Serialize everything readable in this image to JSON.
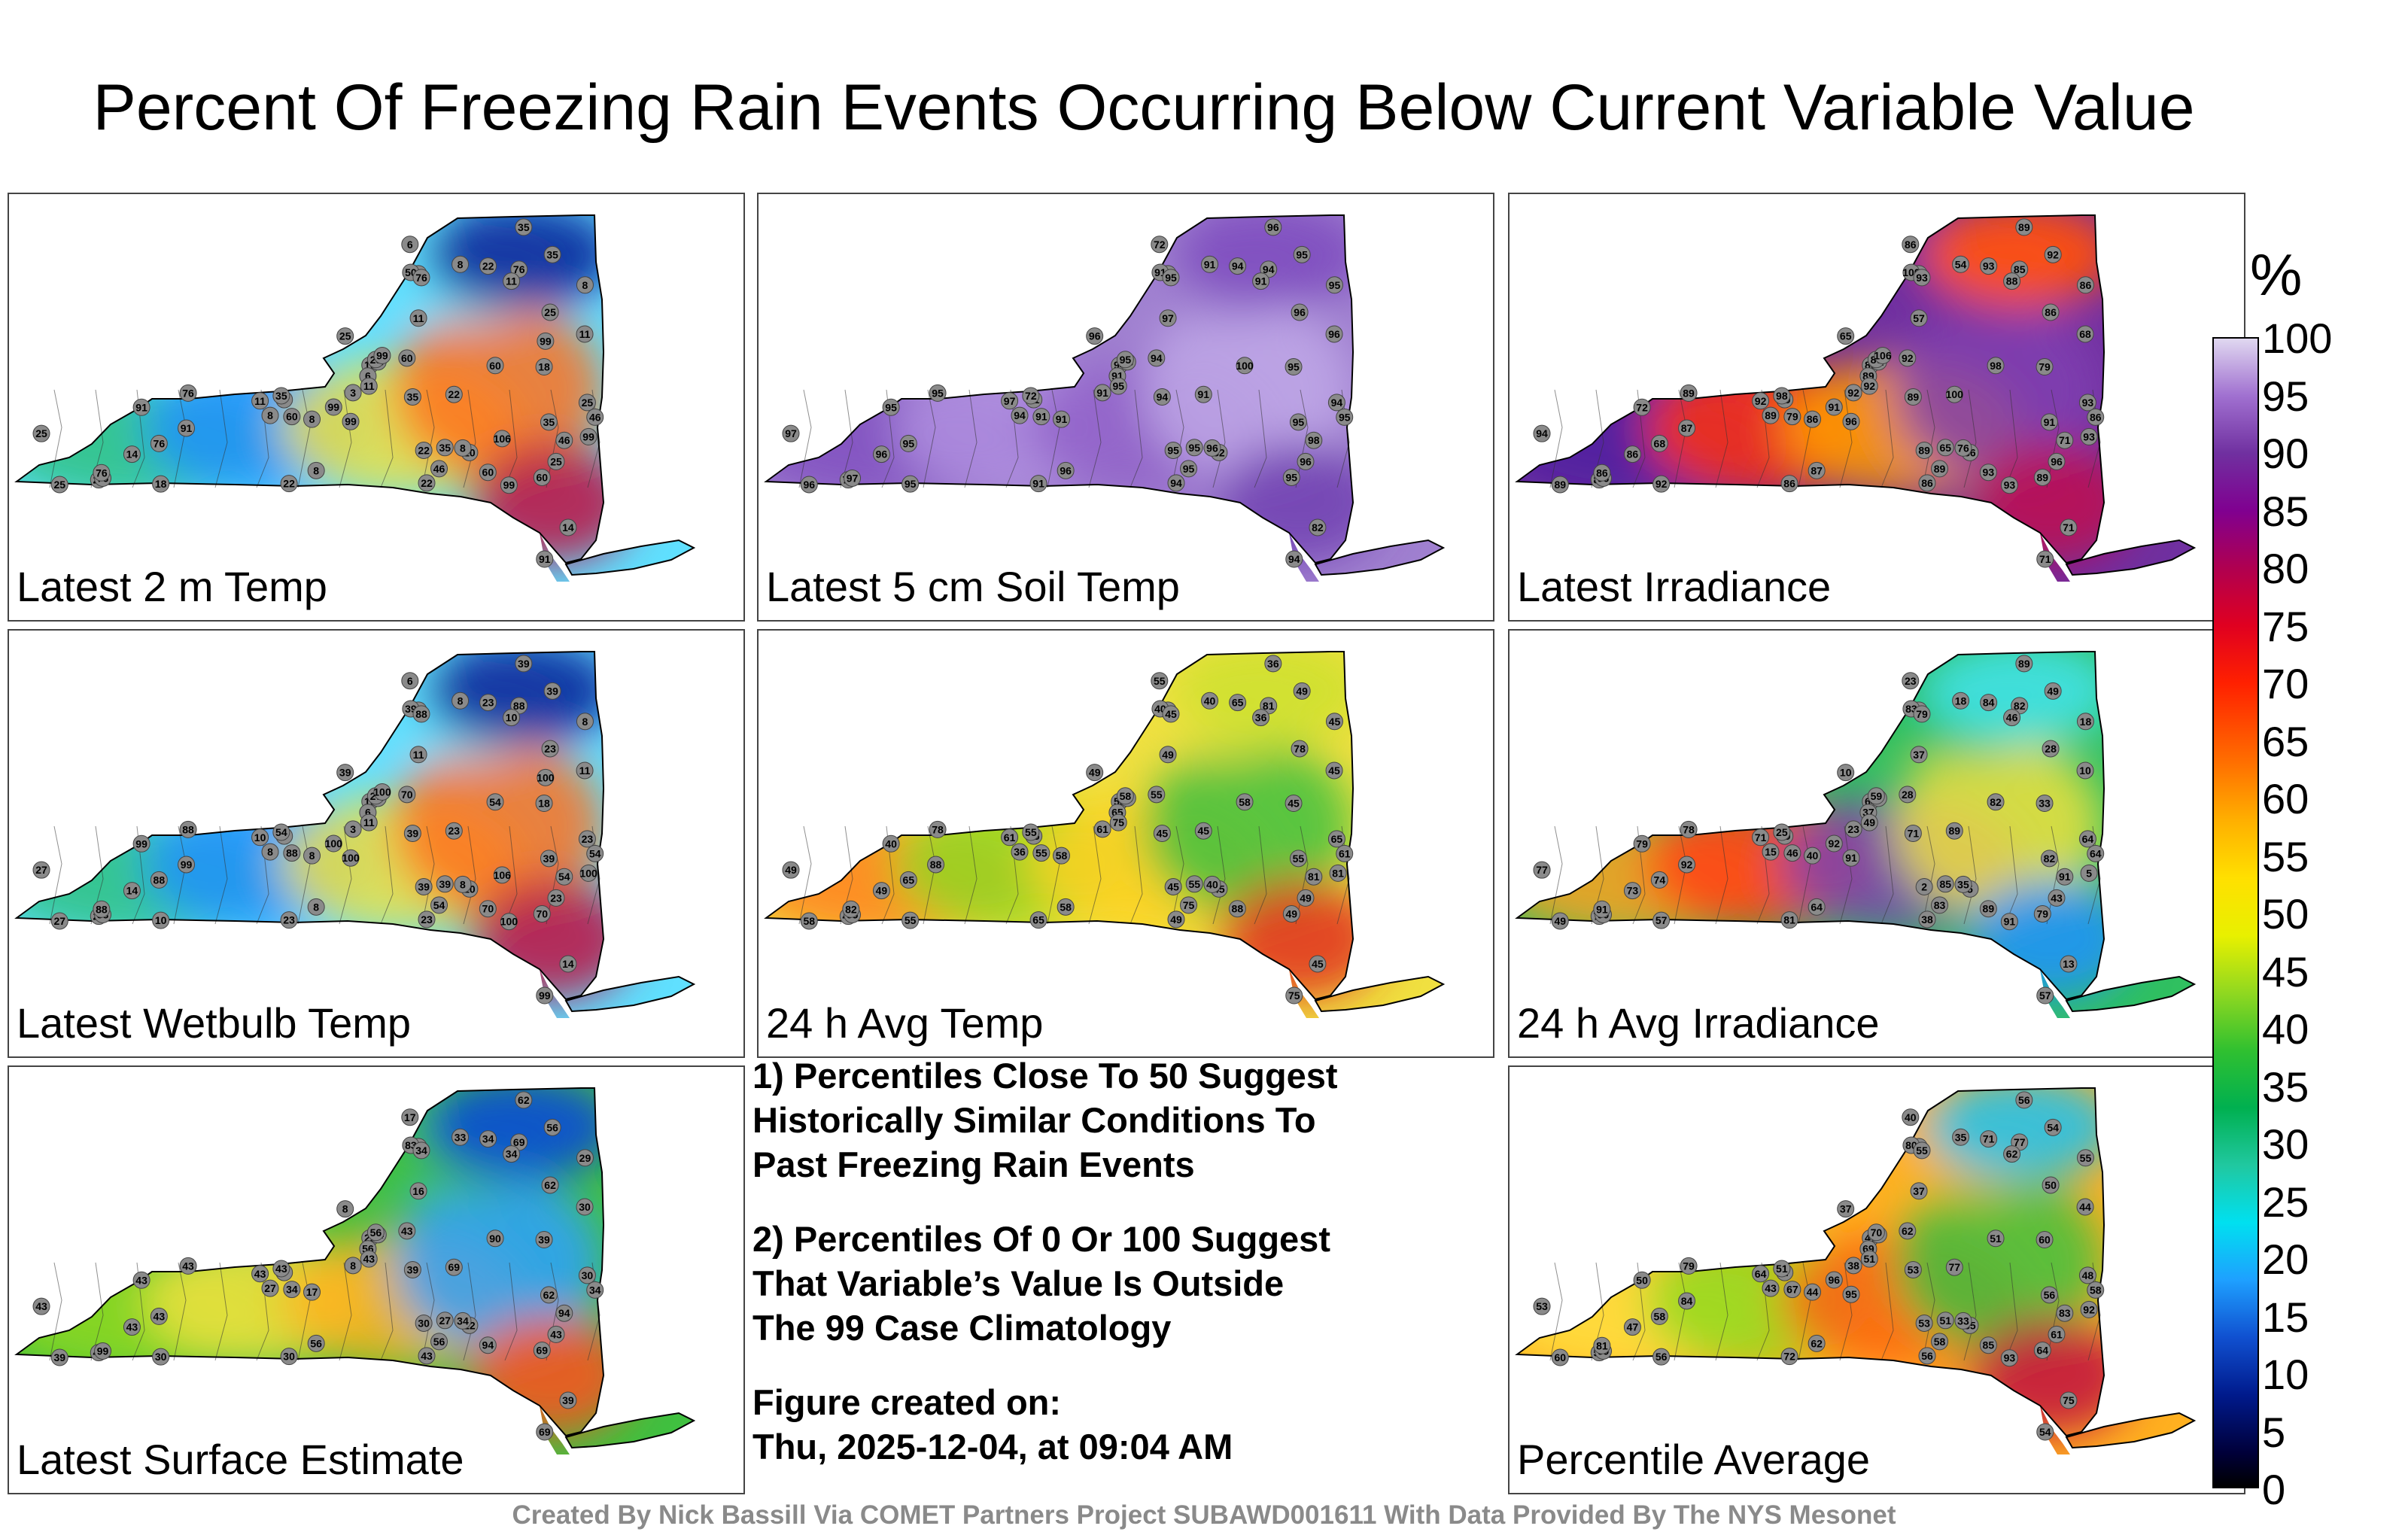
{
  "title": "Percent Of Freezing Rain Events Occurring Below Current Variable Value",
  "panels": [
    {
      "label": "Latest 2 m Temp",
      "palette": [
        "#60e0ff",
        "#30c080",
        "#2090ff",
        "#f0e040",
        "#ff7020",
        "#c01040"
      ],
      "northeast": "#1030a0",
      "stations": [
        "8",
        "3",
        "10",
        "6",
        "3",
        "3",
        "8",
        "8",
        "11",
        "25",
        "25",
        "10",
        "22",
        "11",
        "35",
        "8",
        "14",
        "8",
        "22",
        "6",
        "11",
        "25",
        "46",
        "76",
        "76",
        "22",
        "22",
        "35",
        "25",
        "35",
        "25",
        "18",
        "8",
        "46",
        "60",
        "60",
        "50",
        "76",
        "91",
        "25",
        "14",
        "18",
        "25",
        "11",
        "35",
        "11",
        "25",
        "60",
        "35",
        "22",
        "35",
        "22",
        "76",
        "91",
        "60",
        "76",
        "46",
        "60",
        "91",
        "76",
        "99",
        "99",
        "99",
        "99",
        "99",
        "99",
        "106"
      ]
    },
    {
      "label": "Latest 5 cm Soil Temp",
      "palette": [
        "#a080d0",
        "#8050c0",
        "#b090e0",
        "#9060c8",
        "#c0a8e8",
        "#7040b0"
      ],
      "northeast": "#8050c0",
      "stations": [
        "91",
        "91",
        "94",
        "72",
        "95",
        "91",
        "95",
        "94",
        "97",
        "96",
        "98",
        "82",
        "95",
        "96",
        "72",
        "91",
        "82",
        "96",
        "94",
        "91",
        "95",
        "96",
        "95",
        "94",
        "95",
        "94",
        "91",
        "95",
        "97",
        "94",
        "96",
        "95",
        "96",
        "95",
        "94",
        "95",
        "91",
        "95",
        "95",
        "94",
        "96",
        "95",
        "95",
        "91",
        "95",
        "97",
        "96",
        "91",
        "95",
        "72",
        "96",
        "91",
        "95",
        "94",
        "100",
        "97",
        "98"
      ]
    },
    {
      "label": "Latest Irradiance",
      "palette": [
        "#7030a0",
        "#5020a0",
        "#ff3010",
        "#ffa000",
        "#8040b0",
        "#c01050"
      ],
      "northeast": "#ff5010",
      "stations": [
        "86",
        "89",
        "86",
        "86",
        "86",
        "92",
        "86",
        "89",
        "57",
        "65",
        "54",
        "86",
        "89",
        "68",
        "98",
        "54",
        "71",
        "76",
        "86",
        "89",
        "92",
        "86",
        "89",
        "85",
        "89",
        "93",
        "86",
        "65",
        "94",
        "89",
        "96",
        "79",
        "87",
        "86",
        "92",
        "89",
        "100",
        "93",
        "72",
        "93",
        "86",
        "92",
        "86",
        "88",
        "91",
        "92",
        "89",
        "79",
        "92",
        "86",
        "89",
        "100",
        "68",
        "71",
        "98",
        "96",
        "71",
        "93",
        "87",
        "86",
        "93",
        "96",
        "93",
        "91",
        "106"
      ]
    },
    {
      "label": "Latest Wetbulb Temp",
      "palette": [
        "#60e0ff",
        "#30c080",
        "#2090ff",
        "#f0e040",
        "#ff7020",
        "#c01040"
      ],
      "northeast": "#1030a0",
      "stations": [
        "8",
        "3",
        "10",
        "6",
        "3",
        "3",
        "8",
        "8",
        "11",
        "39",
        "39",
        "10",
        "39",
        "11",
        "54",
        "8",
        "14",
        "8",
        "23",
        "6",
        "11",
        "23",
        "54",
        "88",
        "88",
        "23",
        "23",
        "39",
        "27",
        "39",
        "23",
        "18",
        "8",
        "54",
        "70",
        "70",
        "39",
        "88",
        "99",
        "23",
        "14",
        "10",
        "27",
        "10",
        "39",
        "10",
        "27",
        "88",
        "39",
        "23",
        "39",
        "23",
        "88",
        "99",
        "54",
        "88",
        "54",
        "70",
        "99",
        "88",
        "100",
        "100",
        "100",
        "100",
        "100",
        "100",
        "106"
      ]
    },
    {
      "label": "24 h Avg Temp",
      "palette": [
        "#f0e040",
        "#ff8020",
        "#90d820",
        "#ffd020",
        "#40c040",
        "#e03020"
      ],
      "northeast": "#d0e030",
      "stations": [
        "58",
        "55",
        "55",
        "55",
        "78",
        "61",
        "45",
        "36",
        "49",
        "49",
        "40",
        "45",
        "45",
        "45",
        "55",
        "40",
        "45",
        "40",
        "49",
        "65",
        "75",
        "78",
        "75",
        "81",
        "78",
        "65",
        "65",
        "55",
        "49",
        "45",
        "49",
        "45",
        "58",
        "61",
        "55",
        "49",
        "40",
        "45",
        "40",
        "65",
        "49",
        "55",
        "58",
        "36",
        "55",
        "61",
        "58",
        "55",
        "49",
        "40",
        "36",
        "45",
        "65",
        "75",
        "58",
        "65",
        "81",
        "88",
        "88",
        "82",
        "81"
      ]
    },
    {
      "label": "24 h Avg Irradiance",
      "palette": [
        "#30c060",
        "#ffa020",
        "#ff4010",
        "#8040b0",
        "#f0e040",
        "#2090ff"
      ],
      "northeast": "#40e0e0",
      "stations": [
        "40",
        "79",
        "64",
        "23",
        "21",
        "23",
        "18",
        "15",
        "37",
        "10",
        "6",
        "5",
        "2",
        "10",
        "25",
        "18",
        "13",
        "35",
        "38",
        "37",
        "49",
        "28",
        "83",
        "82",
        "78",
        "84",
        "81",
        "85",
        "77",
        "71",
        "43",
        "33",
        "64",
        "64",
        "28",
        "79",
        "83",
        "79",
        "79",
        "64",
        "73",
        "57",
        "59",
        "46",
        "82",
        "71",
        "49",
        "46",
        "49",
        "79",
        "89",
        "89",
        "74",
        "57",
        "82",
        "90",
        "91",
        "89",
        "92",
        "91",
        "5",
        "91",
        "91",
        "92"
      ]
    },
    {
      "label": "Latest Surface Estimate",
      "palette": [
        "#40c040",
        "#90d820",
        "#f0e040",
        "#ffb020",
        "#30a0ff",
        "#ff5020"
      ],
      "northeast": "#1050d0",
      "stations": [
        "17",
        "8",
        "22",
        "17",
        "16",
        "8",
        "29",
        "27",
        "16",
        "8",
        "34",
        "22",
        "30",
        "30",
        "43",
        "33",
        "39",
        "34",
        "43",
        "56",
        "43",
        "62",
        "56",
        "69",
        "43",
        "34",
        "30",
        "27",
        "43",
        "39",
        "43",
        "39",
        "56",
        "34",
        "43",
        "69",
        "83",
        "34",
        "43",
        "30",
        "43",
        "30",
        "56",
        "34",
        "62",
        "43",
        "39",
        "34",
        "56",
        "43",
        "62",
        "69",
        "43",
        "69",
        "90",
        "99",
        "94",
        "94"
      ]
    },
    {
      "label": "Percentile Average",
      "palette": [
        "#ffb020",
        "#ffe040",
        "#90d820",
        "#ff6010",
        "#40c040",
        "#c01040"
      ],
      "northeast": "#30c0e0",
      "stations": [
        "44",
        "17",
        "47",
        "40",
        "53",
        "38",
        "55",
        "43",
        "37",
        "37",
        "47",
        "35",
        "53",
        "44",
        "51",
        "35",
        "75",
        "33",
        "56",
        "69",
        "51",
        "50",
        "58",
        "77",
        "79",
        "71",
        "72",
        "51",
        "53",
        "53",
        "61",
        "60",
        "62",
        "58",
        "62",
        "64",
        "80",
        "55",
        "50",
        "48",
        "47",
        "56",
        "70",
        "62",
        "56",
        "64",
        "60",
        "67",
        "54",
        "56",
        "56",
        "77",
        "58",
        "54",
        "51",
        "69",
        "83",
        "85",
        "84",
        "81",
        "92",
        "95",
        "93",
        "96"
      ]
    }
  ],
  "notes": [
    "1) Percentiles Close To 50 Suggest\nHistorically Similar Conditions To\nPast Freezing Rain Events",
    "2) Percentiles Of 0 Or 100 Suggest\nThat Variable’s Value Is Outside\nThe 99 Case Climatology",
    "Figure created on:\nThu, 2025-12-04, at 09:04 AM"
  ],
  "colorbar": {
    "unit": "%",
    "ticks": [
      "100",
      "95",
      "90",
      "85",
      "80",
      "75",
      "70",
      "65",
      "60",
      "55",
      "50",
      "45",
      "40",
      "35",
      "30",
      "25",
      "20",
      "15",
      "10",
      "5",
      "0"
    ]
  },
  "credit": "Created By Nick Bassill Via COMET Partners Project SUBAWD001611 With Data Provided By The NYS Mesonet"
}
